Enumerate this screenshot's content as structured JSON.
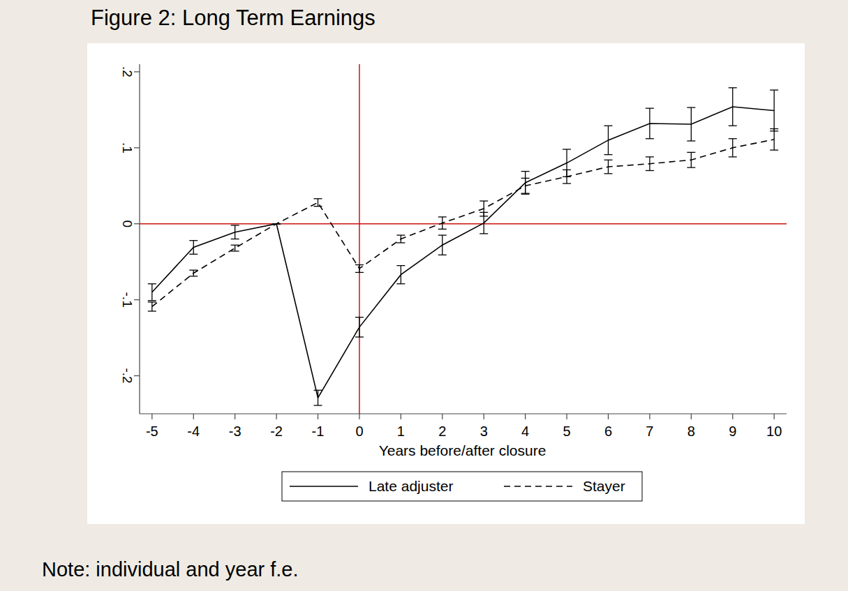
{
  "chart_data": {
    "type": "line",
    "title": "Figure 2: Long Term Earnings",
    "note": "Note: individual and year f.e.",
    "x_label": "Years before/after closure",
    "x": [
      -5,
      -4,
      -3,
      -2,
      -1,
      0,
      1,
      2,
      3,
      4,
      5,
      6,
      7,
      8,
      9,
      10
    ],
    "xlim": [
      -5.3,
      10.3
    ],
    "xticks": [
      -5,
      -4,
      -3,
      -2,
      -1,
      0,
      1,
      2,
      3,
      4,
      5,
      6,
      7,
      8,
      9,
      10
    ],
    "ylim": [
      -0.25,
      0.21
    ],
    "yticks": [
      {
        "value": -0.2,
        "label": "-.2"
      },
      {
        "value": -0.1,
        "label": "-.1"
      },
      0,
      {
        "value": 0.1,
        "label": ".1"
      },
      {
        "value": 0.2,
        "label": ".2"
      }
    ],
    "grid": false,
    "legend": "bottom",
    "reference_lines": [
      {
        "axis": "x",
        "value": 0
      },
      {
        "axis": "y",
        "value": 0
      }
    ],
    "reference_color": "#d01010",
    "series": [
      {
        "name": "Late adjuster",
        "color": "#000000",
        "line_style": "solid",
        "values": [
          -0.09,
          -0.031,
          -0.011,
          0,
          -0.229,
          -0.136,
          -0.067,
          -0.028,
          0.001,
          0.054,
          0.08,
          0.11,
          0.132,
          0.131,
          0.154,
          0.149
        ],
        "errors": [
          0.011,
          0.009,
          0.009,
          0,
          0.01,
          0.013,
          0.012,
          0.013,
          0.014,
          0.015,
          0.018,
          0.019,
          0.02,
          0.022,
          0.025,
          0.027
        ]
      },
      {
        "name": "Stayer",
        "color": "#000000",
        "line_style": "dashed",
        "values": [
          -0.109,
          -0.065,
          -0.032,
          0,
          0.028,
          -0.059,
          -0.02,
          0.001,
          0.02,
          0.05,
          0.062,
          0.075,
          0.079,
          0.084,
          0.1,
          0.111
        ],
        "errors": [
          0.006,
          0.004,
          0.004,
          0,
          0.005,
          0.005,
          0.005,
          0.008,
          0.01,
          0.01,
          0.009,
          0.009,
          0.009,
          0.01,
          0.012,
          0.014
        ]
      }
    ]
  }
}
